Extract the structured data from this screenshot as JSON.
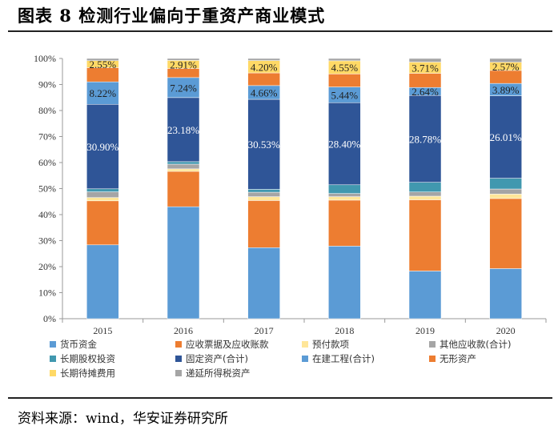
{
  "title": "图表 8  检测行业偏向于重资产商业模式",
  "source": "资料来源：wind，华安证券研究所",
  "chart_data": {
    "type": "bar",
    "stacked": true,
    "normalized": true,
    "categories": [
      "2015",
      "2016",
      "2017",
      "2018",
      "2019",
      "2020"
    ],
    "ylim": [
      0,
      100
    ],
    "yticks": [
      "0%",
      "10%",
      "20%",
      "30%",
      "40%",
      "50%",
      "60%",
      "70%",
      "80%",
      "90%",
      "100%"
    ],
    "legend_position": "bottom",
    "series": [
      {
        "name": "货币资金",
        "color": "#5B9BD5",
        "values": [
          27.0,
          40.5,
          24.1,
          25.1,
          15.8,
          15.8
        ]
      },
      {
        "name": "应收票据及应收账款",
        "color": "#ED7D31",
        "values": [
          16.1,
          12.8,
          16.0,
          15.9,
          23.6,
          22.1
        ]
      },
      {
        "name": "预付款项",
        "color": "#FFE699",
        "values": [
          1.2,
          0.9,
          1.3,
          1.2,
          1.2,
          1.4
        ]
      },
      {
        "name": "其他应收款(合计)",
        "color": "#A5A5A5",
        "values": [
          2.1,
          1.7,
          1.5,
          1.1,
          1.4,
          1.6
        ]
      },
      {
        "name": "长期股权投资",
        "color": "#4198AF",
        "values": [
          1.1,
          0.9,
          1.0,
          3.0,
          3.2,
          3.4
        ]
      },
      {
        "name": "固定资产(合计)",
        "color": "#2F5597",
        "values": [
          30.9,
          23.18,
          30.53,
          28.4,
          28.78,
          26.01
        ],
        "labels": [
          "30.90%",
          "23.18%",
          "30.53%",
          "28.40%",
          "28.78%",
          "26.01%"
        ],
        "label_color": "#ffffff"
      },
      {
        "name": "在建工程(合计)",
        "color": "#5B9BD5",
        "values": [
          8.22,
          7.24,
          4.66,
          5.44,
          2.64,
          3.89
        ],
        "labels": [
          "8.22%",
          "7.24%",
          "4.66%",
          "5.44%",
          "2.64%",
          "3.89%"
        ],
        "label_color": "#1f1f1f"
      },
      {
        "name": "无形资产",
        "color": "#ED7D31",
        "values": [
          5.2,
          3.3,
          4.3,
          4.5,
          4.7,
          4.1
        ]
      },
      {
        "name": "长期待摊费用",
        "color": "#FFD966",
        "values": [
          2.55,
          2.91,
          4.2,
          4.55,
          3.71,
          2.57
        ],
        "labels": [
          "2.55%",
          "2.91%",
          "4.20%",
          "4.55%",
          "3.71%",
          "2.57%"
        ],
        "label_color": "#1f1f1f"
      },
      {
        "name": "递延所得税资产",
        "color": "#A5A5A5",
        "values": [
          0.8,
          0.7,
          0.7,
          0.8,
          1.2,
          1.2
        ]
      }
    ]
  }
}
